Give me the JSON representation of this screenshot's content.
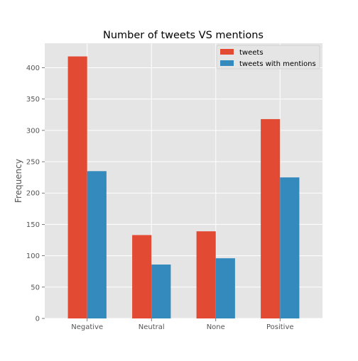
{
  "chart_data": {
    "type": "bar",
    "title": "Number of tweets VS mentions",
    "xlabel": "",
    "ylabel": "Frequency",
    "categories": [
      "Negative",
      "Neutral",
      "None",
      "Positive"
    ],
    "series": [
      {
        "name": "tweets",
        "values": [
          418,
          133,
          139,
          318
        ],
        "color": "#E24A33"
      },
      {
        "name": "tweets with mentions",
        "values": [
          235,
          86,
          96,
          225
        ],
        "color": "#348ABD"
      }
    ],
    "ylim": [
      0,
      439
    ],
    "yticks": [
      0,
      50,
      100,
      150,
      200,
      250,
      300,
      350,
      400
    ],
    "grid": true,
    "legend_position": "top-right",
    "background_color": "#E5E5E5",
    "grid_color": "#FFFFFF"
  }
}
